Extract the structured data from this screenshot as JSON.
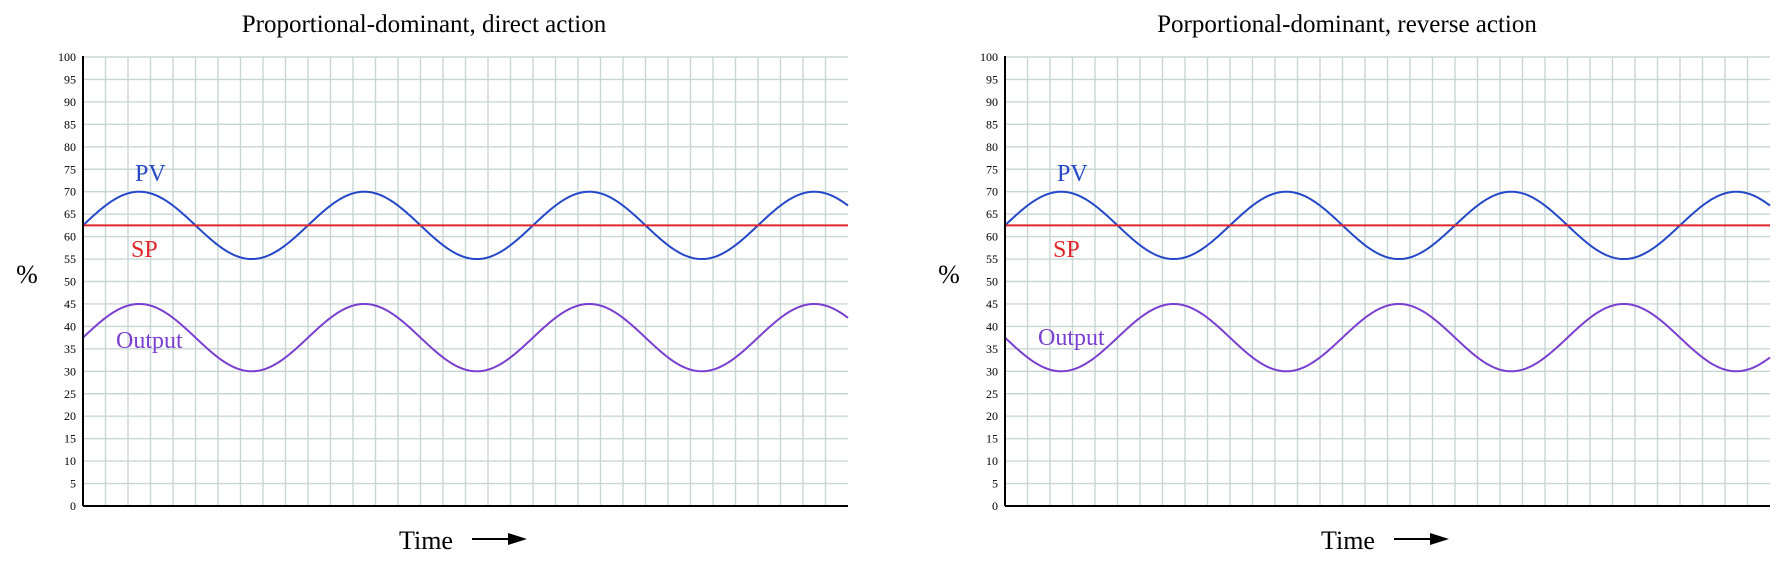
{
  "colors": {
    "grid": "#c9d6d6",
    "axis": "#000000",
    "pv": "#2448c8",
    "sp": "#e0262b",
    "output": "#7a3fd0",
    "text": "#000000"
  },
  "chart_data": [
    {
      "type": "line",
      "title": "Proportional-dominant, direct action",
      "ylabel": "%",
      "xlabel": "Time",
      "ylim": [
        0,
        100
      ],
      "yticks": [
        0,
        5,
        10,
        15,
        20,
        25,
        30,
        35,
        40,
        45,
        50,
        55,
        60,
        65,
        70,
        75,
        80,
        85,
        90,
        95,
        100
      ],
      "grid": true,
      "legend": "inline labels",
      "series": [
        {
          "name": "PV",
          "kind": "sine",
          "center": 62.5,
          "amplitude": 7.5,
          "period_cells": 10,
          "peak_cell": 2.5,
          "color": "pv"
        },
        {
          "name": "SP",
          "kind": "constant",
          "value": 62.5,
          "color": "sp"
        },
        {
          "name": "Output",
          "kind": "sine",
          "center": 37.5,
          "amplitude": 7.5,
          "period_cells": 10,
          "peak_cell": 2.5,
          "color": "output"
        }
      ]
    },
    {
      "type": "line",
      "title": "Porportional-dominant, reverse action",
      "ylabel": "%",
      "xlabel": "Time",
      "ylim": [
        0,
        100
      ],
      "yticks": [
        0,
        5,
        10,
        15,
        20,
        25,
        30,
        35,
        40,
        45,
        50,
        55,
        60,
        65,
        70,
        75,
        80,
        85,
        90,
        95,
        100
      ],
      "grid": true,
      "legend": "inline labels",
      "series": [
        {
          "name": "PV",
          "kind": "sine",
          "center": 62.5,
          "amplitude": 7.5,
          "period_cells": 10,
          "peak_cell": 2.5,
          "color": "pv"
        },
        {
          "name": "SP",
          "kind": "constant",
          "value": 62.5,
          "color": "sp"
        },
        {
          "name": "Output",
          "kind": "sine",
          "center": 37.5,
          "amplitude": 7.5,
          "period_cells": 10,
          "peak_cell": 7.5,
          "color": "output"
        }
      ]
    }
  ]
}
